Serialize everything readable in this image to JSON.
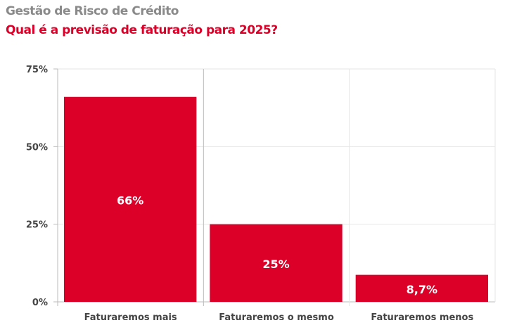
{
  "title": "Gestão de Risco de Crédito",
  "subtitle": "Qual é a previsão de faturação para 2025?",
  "chart_data": {
    "type": "bar",
    "categories": [
      "Faturaremos mais",
      "Faturaremos o mesmo",
      "Faturaremos menos"
    ],
    "values": [
      66,
      25,
      8.7
    ],
    "data_labels": [
      "66%",
      "25%",
      "8,7%"
    ],
    "yticks": [
      0,
      25,
      50,
      75
    ],
    "ytick_labels": [
      "0%",
      "25%",
      "50%",
      "75%"
    ],
    "ylim": [
      0,
      75
    ],
    "xlabel": "",
    "ylabel": "",
    "grid": true,
    "bar_color": "#dc0028"
  }
}
